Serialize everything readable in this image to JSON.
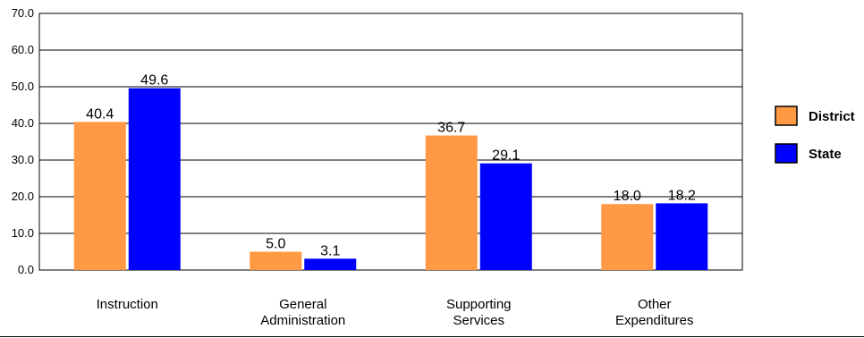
{
  "chart_data": {
    "type": "bar",
    "categories": [
      [
        "Instruction"
      ],
      [
        "General",
        "Administration"
      ],
      [
        "Supporting",
        "Services"
      ],
      [
        "Other",
        "Expenditures"
      ]
    ],
    "series": [
      {
        "name": "District",
        "color": "#FF9944",
        "values": [
          40.4,
          5.0,
          36.7,
          18.0
        ]
      },
      {
        "name": "State",
        "color": "#0000FF",
        "values": [
          49.6,
          3.1,
          29.1,
          18.2
        ]
      }
    ],
    "ylim": [
      0,
      70
    ],
    "y_ticks": [
      "0.0",
      "10.0",
      "20.0",
      "30.0",
      "40.0",
      "50.0",
      "60.0",
      "70.0"
    ],
    "grid": true,
    "legend_position": "right",
    "title": "",
    "xlabel": "",
    "ylabel": ""
  }
}
